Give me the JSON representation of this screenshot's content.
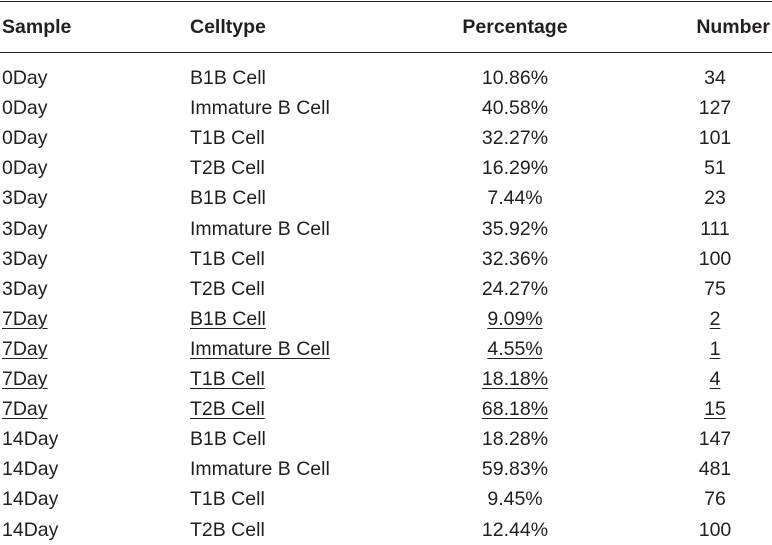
{
  "table": {
    "columns": [
      "Sample",
      "Celltype",
      "Percentage",
      "Number"
    ],
    "rows": [
      {
        "sample": "0Day",
        "celltype": "B1B Cell",
        "percentage": "10.86%",
        "number": "34",
        "underlined": false
      },
      {
        "sample": "0Day",
        "celltype": "Immature B Cell",
        "percentage": "40.58%",
        "number": "127",
        "underlined": false
      },
      {
        "sample": "0Day",
        "celltype": "T1B Cell",
        "percentage": "32.27%",
        "number": "101",
        "underlined": false
      },
      {
        "sample": "0Day",
        "celltype": "T2B Cell",
        "percentage": "16.29%",
        "number": "51",
        "underlined": false
      },
      {
        "sample": "3Day",
        "celltype": "B1B Cell",
        "percentage": "7.44%",
        "number": "23",
        "underlined": false
      },
      {
        "sample": "3Day",
        "celltype": "Immature B Cell",
        "percentage": "35.92%",
        "number": "111",
        "underlined": false
      },
      {
        "sample": "3Day",
        "celltype": "T1B Cell",
        "percentage": "32.36%",
        "number": "100",
        "underlined": false
      },
      {
        "sample": "3Day",
        "celltype": "T2B Cell",
        "percentage": "24.27%",
        "number": "75",
        "underlined": false
      },
      {
        "sample": "7Day",
        "celltype": "B1B Cell",
        "percentage": "9.09%",
        "number": "2",
        "underlined": true
      },
      {
        "sample": "7Day",
        "celltype": "Immature B Cell",
        "percentage": "4.55%",
        "number": "1",
        "underlined": true
      },
      {
        "sample": "7Day",
        "celltype": "T1B Cell",
        "percentage": "18.18%",
        "number": "4",
        "underlined": true
      },
      {
        "sample": "7Day",
        "celltype": "T2B Cell",
        "percentage": "68.18%",
        "number": "15",
        "underlined": true
      },
      {
        "sample": "14Day",
        "celltype": "B1B Cell",
        "percentage": "18.28%",
        "number": "147",
        "underlined": false
      },
      {
        "sample": "14Day",
        "celltype": "Immature B Cell",
        "percentage": "59.83%",
        "number": "481",
        "underlined": false
      },
      {
        "sample": "14Day",
        "celltype": "T1B Cell",
        "percentage": "9.45%",
        "number": "76",
        "underlined": false
      },
      {
        "sample": "14Day",
        "celltype": "T2B Cell",
        "percentage": "12.44%",
        "number": "100",
        "underlined": false
      }
    ]
  },
  "colors": {
    "text": "#231f20",
    "rule": "#231f20",
    "background": "#ffffff"
  }
}
